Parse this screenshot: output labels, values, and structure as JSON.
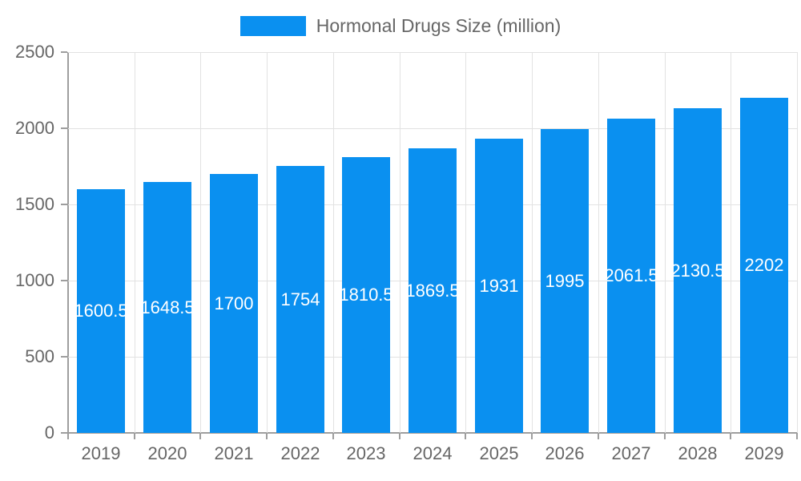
{
  "chart_data": {
    "type": "bar",
    "title": "Hormonal Drugs Size (million)",
    "legend": [
      {
        "label": "Hormonal Drugs Size (million)"
      }
    ],
    "legend_position": "top",
    "categories": [
      "2019",
      "2020",
      "2021",
      "2022",
      "2023",
      "2024",
      "2025",
      "2026",
      "2027",
      "2028",
      "2029"
    ],
    "values": [
      1600.5,
      1648.5,
      1700,
      1754,
      1810.5,
      1869.5,
      1931,
      1995,
      2061.5,
      2130.5,
      2202
    ],
    "bar_labels": [
      "1600.5",
      "1648.5",
      "1700",
      "1754",
      "1810.5",
      "1869.5",
      "1931",
      "1995",
      "2061.5",
      "2130.5",
      "2202"
    ],
    "xlabel": "",
    "ylabel": "",
    "ylim": [
      0,
      2500
    ],
    "yticks": [
      "0",
      "500",
      "1000",
      "1500",
      "2000",
      "2500"
    ],
    "grid": true,
    "colors": {
      "bar": "#0a90f0",
      "bar_label_text": "#ffffff",
      "axis_text": "#666666",
      "axis_line": "#9e9e9e",
      "gridline": "#e2e2e2",
      "background": "#ffffff"
    }
  }
}
